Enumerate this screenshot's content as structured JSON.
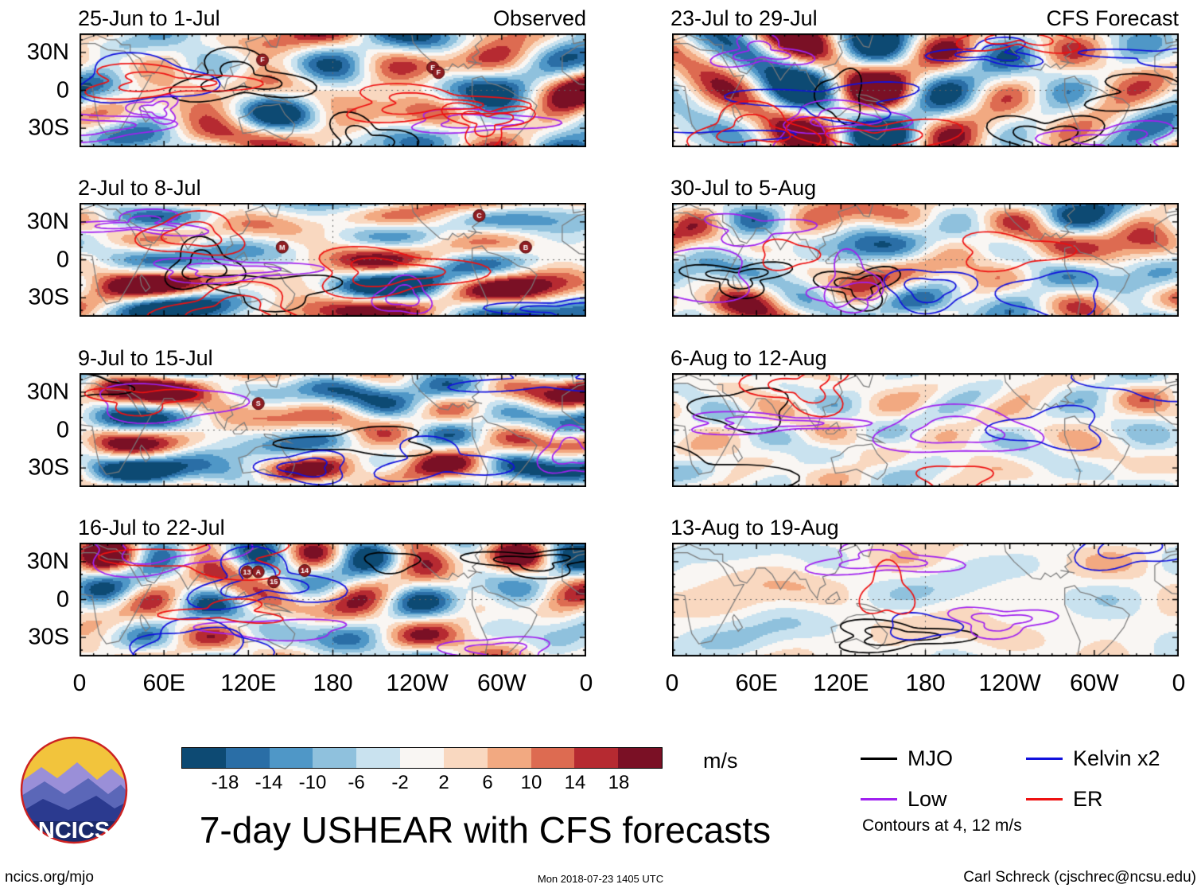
{
  "page": {
    "title": "7-day USHEAR with CFS forecasts",
    "footer_left": "ncics.org/mjo",
    "footer_center": "Mon 2018-07-23 1405 UTC",
    "footer_right": "Carl Schreck (cjschrec@ncsu.edu)",
    "logo_text": "NCICS"
  },
  "chart_data": {
    "type": "heatmap",
    "description": "Weekly 7-day USHEAR (zonal wind shear) anomaly world maps; left column observed weeks, right column CFS forecast weeks; shading in m/s with MJO, Low, Kelvin and ER wave contours overlaid.",
    "column_headers": [
      "Observed",
      "CFS Forecast"
    ],
    "xlabel_ticks": [
      "0",
      "60E",
      "120E",
      "180",
      "120W",
      "60W",
      "0"
    ],
    "ylabel_ticks": [
      "30N",
      "0",
      "30S"
    ],
    "lon_range": [
      0,
      360
    ],
    "lat_range": [
      -45,
      45
    ],
    "panels": [
      {
        "label": "25-Jun to 1-Jul",
        "column": "Observed",
        "relative_intensity": 1.0,
        "storm_markers": [
          {
            "label": "F",
            "lon": 130,
            "lat": 24
          },
          {
            "label": "E",
            "lon": 251,
            "lat": 18
          },
          {
            "label": "F",
            "lon": 255,
            "lat": 14
          }
        ]
      },
      {
        "label": "2-Jul to 8-Jul",
        "column": "Observed",
        "relative_intensity": 1.0,
        "storm_markers": [
          {
            "label": "C",
            "lon": 284,
            "lat": 35
          },
          {
            "label": "M",
            "lon": 144,
            "lat": 10
          },
          {
            "label": "B",
            "lon": 317,
            "lat": 10
          }
        ]
      },
      {
        "label": "9-Jul to 15-Jul",
        "column": "Observed",
        "relative_intensity": 1.0,
        "storm_markers": [
          {
            "label": "S",
            "lon": 127,
            "lat": 21
          }
        ]
      },
      {
        "label": "16-Jul to 22-Jul",
        "column": "Observed",
        "relative_intensity": 1.0,
        "storm_markers": [
          {
            "label": "13",
            "lon": 119,
            "lat": 22
          },
          {
            "label": "A",
            "lon": 127,
            "lat": 22
          },
          {
            "label": "15",
            "lon": 138,
            "lat": 14
          },
          {
            "label": "14",
            "lon": 160,
            "lat": 23
          }
        ]
      },
      {
        "label": "23-Jul to 29-Jul",
        "column": "CFS Forecast",
        "relative_intensity": 1.0,
        "storm_markers": []
      },
      {
        "label": "30-Jul to 5-Aug",
        "column": "CFS Forecast",
        "relative_intensity": 0.8,
        "storm_markers": []
      },
      {
        "label": "6-Aug to 12-Aug",
        "column": "CFS Forecast",
        "relative_intensity": 0.45,
        "storm_markers": []
      },
      {
        "label": "13-Aug to 19-Aug",
        "column": "CFS Forecast",
        "relative_intensity": 0.3,
        "storm_markers": []
      }
    ],
    "colorbar": {
      "units": "m/s",
      "tick_labels": [
        "-18",
        "-14",
        "-10",
        "-6",
        "-2",
        "2",
        "6",
        "10",
        "14",
        "18"
      ],
      "colors": [
        "#0d4a73",
        "#2a6ea6",
        "#4f97c7",
        "#8fc1dd",
        "#c9e2ef",
        "#f9f6f3",
        "#f9d8c0",
        "#f2a981",
        "#dd6b51",
        "#b62a31",
        "#7a1025"
      ]
    },
    "legend": {
      "entries": [
        {
          "label": "MJO",
          "color": "#000000"
        },
        {
          "label": "Low",
          "color": "#a020f0"
        },
        {
          "label": "Kelvin x2",
          "color": "#1111dd"
        },
        {
          "label": "ER",
          "color": "#ee1111"
        }
      ],
      "note": "Contours at 4, 12 m/s"
    }
  }
}
